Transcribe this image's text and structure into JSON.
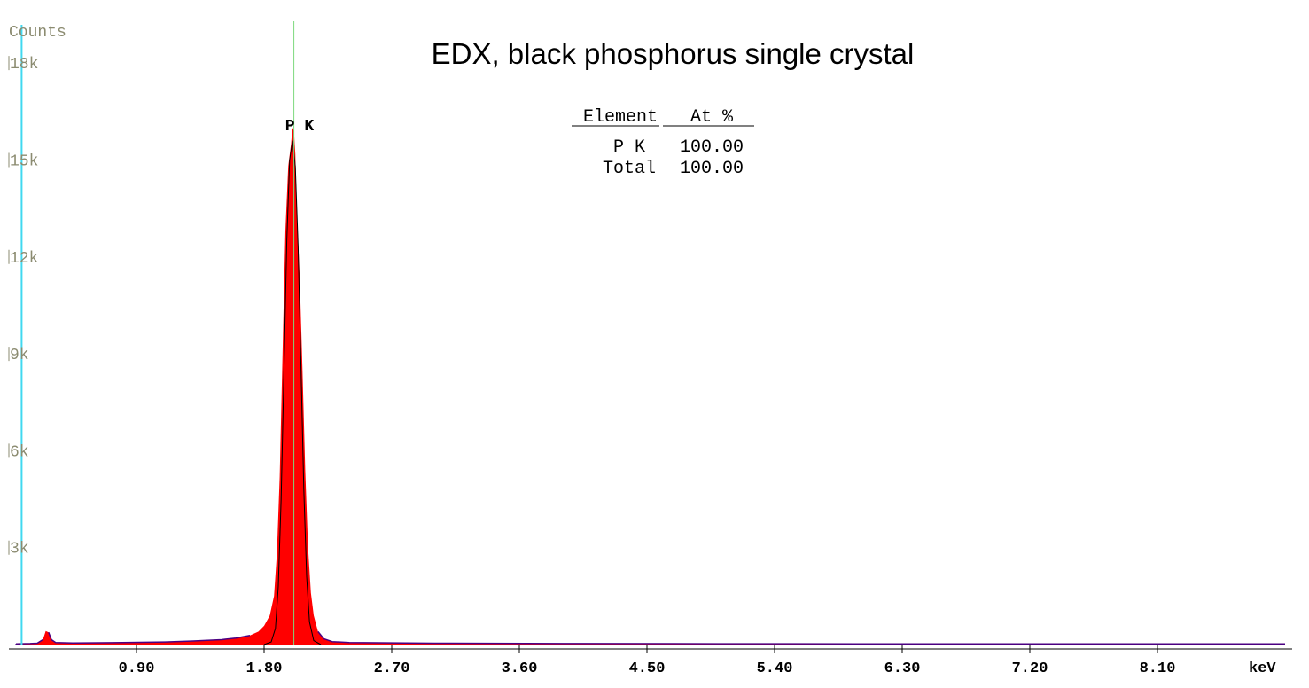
{
  "chart_data": {
    "type": "area",
    "title": "EDX, black phosphorus single crystal",
    "xlabel": "keV",
    "ylabel": "Counts",
    "xlim": [
      0.0,
      9.05
    ],
    "ylim": [
      0,
      18800
    ],
    "x_ticks": [
      "0.90",
      "1.80",
      "2.70",
      "3.60",
      "4.50",
      "5.40",
      "6.30",
      "7.20",
      "8.10"
    ],
    "y_ticks": [
      {
        "label": "3k",
        "value": 3000
      },
      {
        "label": "6k",
        "value": 6000
      },
      {
        "label": "9k",
        "value": 9000
      },
      {
        "label": "12k",
        "value": 12000
      },
      {
        "label": "15k",
        "value": 15000
      },
      {
        "label": "18k",
        "value": 18000
      }
    ],
    "peak_label": {
      "text": "P K",
      "energy": 2.01
    },
    "marker_line_keV": 0.09,
    "spectrum": {
      "name": "",
      "color": "#ff0000",
      "points": [
        [
          0.05,
          20
        ],
        [
          0.15,
          30
        ],
        [
          0.2,
          40
        ],
        [
          0.24,
          150
        ],
        [
          0.26,
          420
        ],
        [
          0.28,
          380
        ],
        [
          0.3,
          150
        ],
        [
          0.33,
          60
        ],
        [
          0.45,
          50
        ],
        [
          0.8,
          60
        ],
        [
          1.1,
          80
        ],
        [
          1.3,
          110
        ],
        [
          1.5,
          150
        ],
        [
          1.6,
          200
        ],
        [
          1.7,
          280
        ],
        [
          1.76,
          400
        ],
        [
          1.8,
          580
        ],
        [
          1.84,
          900
        ],
        [
          1.87,
          1500
        ],
        [
          1.89,
          2800
        ],
        [
          1.91,
          5200
        ],
        [
          1.93,
          9000
        ],
        [
          1.95,
          12800
        ],
        [
          1.97,
          14800
        ],
        [
          1.99,
          15500
        ],
        [
          2.0,
          16000
        ],
        [
          2.01,
          15900
        ],
        [
          2.02,
          15200
        ],
        [
          2.03,
          13500
        ],
        [
          2.05,
          11500
        ],
        [
          2.07,
          8600
        ],
        [
          2.09,
          5400
        ],
        [
          2.11,
          3000
        ],
        [
          2.13,
          1600
        ],
        [
          2.15,
          900
        ],
        [
          2.18,
          400
        ],
        [
          2.22,
          180
        ],
        [
          2.28,
          90
        ],
        [
          2.4,
          60
        ],
        [
          3.0,
          40
        ],
        [
          4.0,
          30
        ],
        [
          5.0,
          25
        ],
        [
          6.0,
          22
        ],
        [
          7.0,
          20
        ],
        [
          8.0,
          20
        ],
        [
          9.0,
          18
        ]
      ]
    },
    "fit": {
      "name": "",
      "color": "#000000",
      "points": [
        [
          1.8,
          0
        ],
        [
          1.85,
          80
        ],
        [
          1.88,
          500
        ],
        [
          1.9,
          1800
        ],
        [
          1.92,
          4500
        ],
        [
          1.94,
          8500
        ],
        [
          1.96,
          12500
        ],
        [
          1.98,
          15000
        ],
        [
          2.0,
          15600
        ],
        [
          2.02,
          14800
        ],
        [
          2.04,
          12300
        ],
        [
          2.06,
          8600
        ],
        [
          2.08,
          4800
        ],
        [
          2.1,
          2100
        ],
        [
          2.12,
          700
        ],
        [
          2.15,
          120
        ],
        [
          2.2,
          0
        ]
      ]
    },
    "grid": false,
    "legend": "none"
  },
  "quant_table": {
    "headers": [
      "Element",
      "At %"
    ],
    "rows": [
      {
        "element": "P K",
        "value": "100.00"
      },
      {
        "element": "Total",
        "value": "100.00"
      }
    ]
  }
}
